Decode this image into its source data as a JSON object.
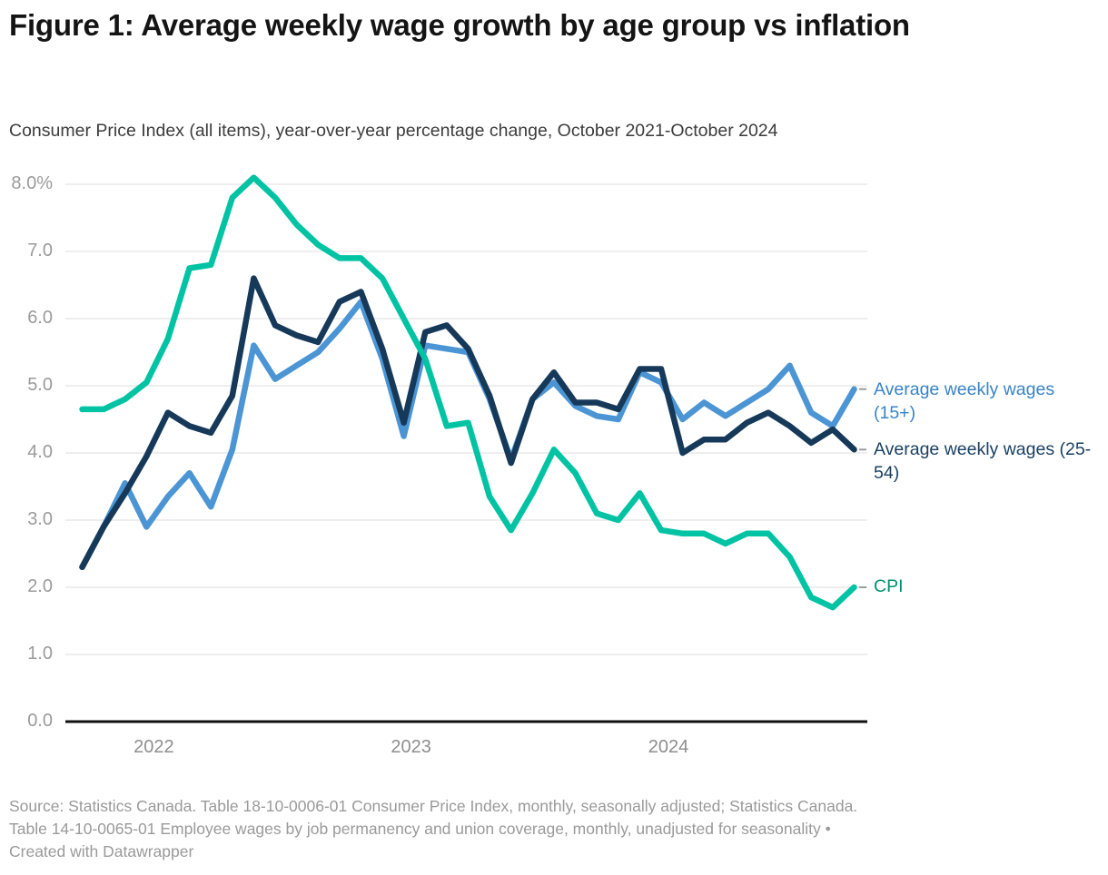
{
  "header": {
    "title": "Figure 1: Average weekly wage growth by age group vs inflation",
    "subtitle": "Consumer Price Index (all items), year-over-year percentage change, October 2021-October 2024"
  },
  "chart_data": {
    "type": "line",
    "title": "Figure 1: Average weekly wage growth by age group vs inflation",
    "subtitle": "Consumer Price Index (all items), year-over-year percentage change, October 2021-October 2024",
    "x_unit": "month",
    "x_range": [
      "2021-10",
      "2024-10"
    ],
    "x_months": [
      "2021-10",
      "2021-11",
      "2021-12",
      "2022-01",
      "2022-02",
      "2022-03",
      "2022-04",
      "2022-05",
      "2022-06",
      "2022-07",
      "2022-08",
      "2022-09",
      "2022-10",
      "2022-11",
      "2022-12",
      "2023-01",
      "2023-02",
      "2023-03",
      "2023-04",
      "2023-05",
      "2023-06",
      "2023-07",
      "2023-08",
      "2023-09",
      "2023-10",
      "2023-11",
      "2023-12",
      "2024-01",
      "2024-02",
      "2024-03",
      "2024-04",
      "2024-05",
      "2024-06",
      "2024-07",
      "2024-08",
      "2024-09",
      "2024-10"
    ],
    "x_tick_labels": [
      "2022",
      "2023",
      "2024"
    ],
    "x_tick_month_indices": [
      3,
      15,
      27
    ],
    "y_tick_labels": [
      "8.0%",
      "7.0",
      "6.0",
      "5.0",
      "4.0",
      "3.0",
      "2.0",
      "1.0",
      "0.0"
    ],
    "ylim": [
      0,
      8.0
    ],
    "grid": "horizontal",
    "legend_position": "right-of-line-ends",
    "series": [
      {
        "name": "Average weekly wages (15+)",
        "color": "#4b95d4",
        "label_color": "#3884c6",
        "values": [
          2.3,
          2.9,
          3.55,
          2.9,
          3.35,
          3.7,
          3.2,
          4.05,
          5.6,
          5.1,
          5.3,
          5.5,
          5.85,
          6.25,
          5.4,
          4.25,
          5.6,
          5.55,
          5.5,
          4.8,
          3.9,
          4.8,
          5.05,
          4.7,
          4.55,
          4.5,
          5.2,
          5.05,
          4.5,
          4.75,
          4.55,
          4.75,
          4.95,
          5.3,
          4.6,
          4.4,
          4.95
        ]
      },
      {
        "name": "Average weekly wages (25-54)",
        "color": "#16395a",
        "label_color": "#1a4063",
        "values": [
          2.3,
          2.9,
          3.4,
          3.95,
          4.6,
          4.4,
          4.3,
          4.85,
          6.6,
          5.9,
          5.75,
          5.65,
          6.25,
          6.4,
          5.55,
          4.45,
          5.8,
          5.9,
          5.55,
          4.85,
          3.85,
          4.8,
          5.2,
          4.75,
          4.75,
          4.65,
          5.25,
          5.25,
          4.0,
          4.2,
          4.2,
          4.45,
          4.6,
          4.4,
          4.15,
          4.35,
          4.05
        ]
      },
      {
        "name": "CPI",
        "color": "#00c3a4",
        "label_color": "#008f72",
        "values": [
          4.65,
          4.65,
          4.8,
          5.05,
          5.7,
          6.75,
          6.8,
          7.8,
          8.1,
          7.8,
          7.4,
          7.1,
          6.9,
          6.9,
          6.6,
          6.0,
          5.4,
          4.4,
          4.45,
          3.35,
          2.85,
          3.4,
          4.05,
          3.7,
          3.1,
          3.0,
          3.4,
          2.85,
          2.8,
          2.8,
          2.65,
          2.8,
          2.8,
          2.45,
          1.85,
          1.7,
          2.0
        ]
      }
    ]
  },
  "footer": {
    "lines": [
      "Source: Statistics Canada. Table 18-10-0006-01  Consumer Price Index, monthly, seasonally adjusted; Statistics Canada.",
      "Table 14-10-0065-01  Employee wages by job permanency and union coverage, monthly, unadjusted for seasonality •",
      "Created with Datawrapper"
    ]
  }
}
